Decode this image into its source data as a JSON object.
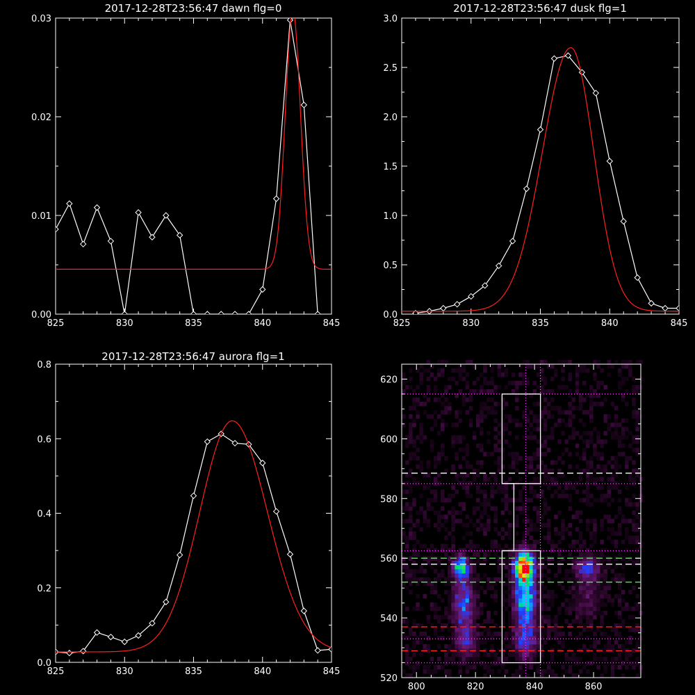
{
  "chart_data": [
    {
      "type": "line",
      "title": "2017-12-28T23:56:47 dawn flg=0",
      "xlim": [
        825,
        845
      ],
      "ylim": [
        0,
        0.03
      ],
      "xticks": [
        825,
        830,
        835,
        840,
        845
      ],
      "xtick_labels": [
        "825",
        "830",
        "835",
        "840",
        "845"
      ],
      "yticks": [
        0,
        0.01,
        0.02,
        0.03
      ],
      "ytick_labels": [
        "0.00",
        "0.01",
        "0.02",
        "0.03"
      ],
      "grid": false,
      "series": [
        {
          "kind": "data",
          "color": "#ffffff",
          "marker": "diamond",
          "x": [
            825,
            826,
            827,
            828,
            829,
            830,
            831,
            832,
            833,
            834,
            835,
            836,
            837,
            838,
            839,
            840,
            841,
            842,
            843,
            844
          ],
          "y": [
            0.0086,
            0.0112,
            0.0071,
            0.0108,
            0.0074,
            0.0,
            0.0103,
            0.0078,
            0.01,
            0.008,
            0.0,
            0.0,
            0.0,
            0.0,
            0.0,
            0.0025,
            0.0117,
            0.0298,
            0.0212,
            0.0
          ]
        },
        {
          "kind": "fit",
          "color": "#ff2020",
          "gaussian": {
            "amplitude": 0.0262,
            "center": 842.2,
            "sigma": 0.55,
            "offset": 0.00455
          }
        }
      ]
    },
    {
      "type": "line",
      "title": "2017-12-28T23:56:47 dusk flg=1",
      "xlim": [
        825,
        845
      ],
      "ylim": [
        0,
        3.0
      ],
      "xticks": [
        825,
        830,
        835,
        840,
        845
      ],
      "xtick_labels": [
        "825",
        "830",
        "835",
        "840",
        "845"
      ],
      "yticks": [
        0,
        0.5,
        1.0,
        1.5,
        2.0,
        2.5,
        3.0
      ],
      "ytick_labels": [
        "0.0",
        "0.5",
        "1.0",
        "1.5",
        "2.0",
        "2.5",
        "3.0"
      ],
      "grid": false,
      "series": [
        {
          "kind": "data",
          "color": "#ffffff",
          "marker": "diamond",
          "x": [
            826,
            827,
            828,
            829,
            830,
            831,
            832,
            833,
            834,
            835,
            836,
            837,
            838,
            839,
            840,
            841,
            842,
            843,
            844,
            845
          ],
          "y": [
            0.01,
            0.03,
            0.06,
            0.1,
            0.18,
            0.29,
            0.49,
            0.74,
            1.27,
            1.87,
            2.59,
            2.62,
            2.45,
            2.24,
            1.55,
            0.94,
            0.37,
            0.11,
            0.06,
            0.06
          ]
        },
        {
          "kind": "fit",
          "color": "#ff2020",
          "gaussian": {
            "amplitude": 2.67,
            "center": 837.2,
            "sigma_left": 2.05,
            "sigma_right": 1.65,
            "offset": 0.03
          }
        }
      ]
    },
    {
      "type": "line",
      "title": "2017-12-28T23:56:47 aurora flg=1",
      "xlim": [
        825,
        845
      ],
      "ylim": [
        0,
        0.8
      ],
      "xticks": [
        825,
        830,
        835,
        840,
        845
      ],
      "xtick_labels": [
        "825",
        "830",
        "835",
        "840",
        "845"
      ],
      "yticks": [
        0,
        0.2,
        0.4,
        0.6,
        0.8
      ],
      "ytick_labels": [
        "0.0",
        "0.2",
        "0.4",
        "0.6",
        "0.8"
      ],
      "grid": false,
      "series": [
        {
          "kind": "data",
          "color": "#ffffff",
          "marker": "diamond",
          "x": [
            825,
            826,
            827,
            828,
            829,
            830,
            831,
            832,
            833,
            834,
            835,
            836,
            837,
            838,
            839,
            840,
            841,
            842,
            843,
            844,
            845
          ],
          "y": [
            0.028,
            0.025,
            0.03,
            0.08,
            0.068,
            0.055,
            0.072,
            0.105,
            0.162,
            0.288,
            0.447,
            0.592,
            0.613,
            0.588,
            0.585,
            0.535,
            0.405,
            0.29,
            0.138,
            0.032,
            0.035
          ]
        },
        {
          "kind": "fit",
          "color": "#ff2020",
          "gaussian": {
            "amplitude": 0.62,
            "center": 837.8,
            "sigma_left": 2.35,
            "sigma_right": 2.55,
            "offset": 0.028
          }
        }
      ]
    },
    {
      "type": "heatmap",
      "title": "",
      "xlim": [
        795,
        876
      ],
      "ylim": [
        520,
        625
      ],
      "xticks": [
        800,
        820,
        840,
        860
      ],
      "xtick_labels": [
        "800",
        "820",
        "840",
        "860"
      ],
      "yticks": [
        520,
        540,
        560,
        580,
        600,
        620
      ],
      "ytick_labels": [
        "520",
        "540",
        "560",
        "580",
        "600",
        "620"
      ],
      "colormap": [
        "#000000",
        "#3d0a3d",
        "#6a1a7a",
        "#2040ff",
        "#00c8ff",
        "#00e060",
        "#f0f000",
        "#ff6000",
        "#ff0000"
      ],
      "blobs": [
        {
          "x": 836.5,
          "y": 557,
          "sx": 2.2,
          "sy": 3.5,
          "amp": 1.0
        },
        {
          "x": 837,
          "y": 546,
          "sx": 2.4,
          "sy": 5,
          "amp": 0.55
        },
        {
          "x": 837,
          "y": 533,
          "sx": 2.5,
          "sy": 4,
          "amp": 0.35
        },
        {
          "x": 815,
          "y": 557,
          "sx": 1.8,
          "sy": 2.5,
          "amp": 0.55
        },
        {
          "x": 816,
          "y": 545,
          "sx": 2.2,
          "sy": 6,
          "amp": 0.35
        },
        {
          "x": 816.5,
          "y": 532,
          "sx": 2.5,
          "sy": 3.5,
          "amp": 0.22
        },
        {
          "x": 858,
          "y": 557,
          "sx": 2.5,
          "sy": 2.5,
          "amp": 0.3
        },
        {
          "x": 858,
          "y": 548,
          "sx": 3,
          "sy": 5,
          "amp": 0.12
        }
      ],
      "overlays": {
        "box_color": "#ffffff",
        "box_lower": {
          "x": [
            829,
            842
          ],
          "y": [
            525,
            562.5
          ]
        },
        "box_upper": {
          "x": [
            829,
            842
          ],
          "y": [
            585,
            615
          ]
        },
        "connector_x": 833,
        "white_dashed_y": [
          588.5,
          558
        ],
        "green_dashed_y": [
          560,
          552
        ],
        "red_dashed_y": [
          537,
          529
        ],
        "magenta_dotted_y": [
          615,
          585,
          562.5,
          525,
          533
        ],
        "magenta_dotted_x": [
          837
        ],
        "white_dotted_x": [
          842
        ]
      }
    }
  ]
}
